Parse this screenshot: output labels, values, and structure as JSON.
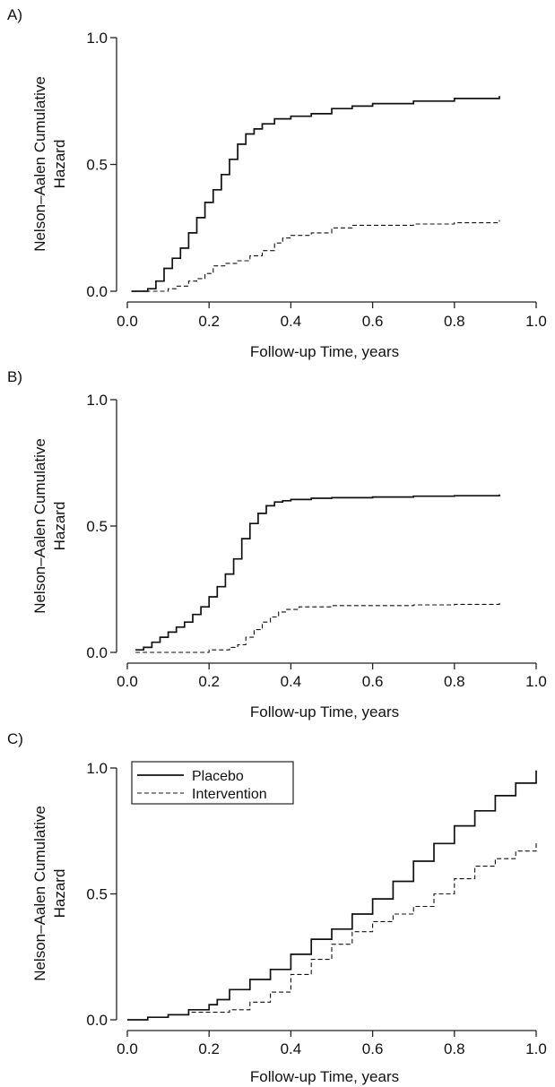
{
  "chart_data": [
    {
      "type": "line",
      "panel_label": "A)",
      "xlabel": "Follow-up Time, years",
      "ylabel": [
        "Nelson–Aalen Cumulative",
        "Hazard"
      ],
      "xlim": [
        0,
        1
      ],
      "ylim": [
        0,
        1
      ],
      "x_ticks": [
        "0.0",
        "0.2",
        "0.4",
        "0.6",
        "0.8",
        "1.0"
      ],
      "y_ticks": [
        "0.0",
        "0.5",
        "1.0"
      ],
      "grid": false,
      "series": [
        {
          "style": "solid",
          "x": [
            0.01,
            0.04,
            0.05,
            0.07,
            0.09,
            0.11,
            0.13,
            0.15,
            0.17,
            0.19,
            0.21,
            0.23,
            0.25,
            0.27,
            0.29,
            0.31,
            0.33,
            0.36,
            0.4,
            0.45,
            0.5,
            0.55,
            0.6,
            0.7,
            0.8,
            0.91
          ],
          "y": [
            0,
            0,
            0.01,
            0.04,
            0.09,
            0.13,
            0.17,
            0.23,
            0.29,
            0.35,
            0.4,
            0.46,
            0.52,
            0.58,
            0.62,
            0.64,
            0.66,
            0.68,
            0.69,
            0.7,
            0.72,
            0.73,
            0.74,
            0.75,
            0.76,
            0.77
          ]
        },
        {
          "style": "dashed",
          "x": [
            0.01,
            0.05,
            0.08,
            0.1,
            0.12,
            0.15,
            0.17,
            0.19,
            0.21,
            0.24,
            0.27,
            0.3,
            0.33,
            0.36,
            0.38,
            0.4,
            0.45,
            0.5,
            0.55,
            0.6,
            0.7,
            0.8,
            0.91
          ],
          "y": [
            0,
            0,
            0,
            0.01,
            0.02,
            0.04,
            0.05,
            0.07,
            0.1,
            0.11,
            0.12,
            0.14,
            0.16,
            0.19,
            0.21,
            0.22,
            0.23,
            0.25,
            0.26,
            0.26,
            0.265,
            0.27,
            0.28
          ]
        }
      ]
    },
    {
      "type": "line",
      "panel_label": "B)",
      "xlabel": "Follow-up Time, years",
      "ylabel": [
        "Nelson–Aalen Cumulative",
        "Hazard"
      ],
      "xlim": [
        0,
        1
      ],
      "ylim": [
        0,
        1
      ],
      "x_ticks": [
        "0.0",
        "0.2",
        "0.4",
        "0.6",
        "0.8",
        "1.0"
      ],
      "y_ticks": [
        "0.0",
        "0.5",
        "1.0"
      ],
      "grid": false,
      "series": [
        {
          "style": "solid",
          "x": [
            0.02,
            0.04,
            0.06,
            0.08,
            0.1,
            0.12,
            0.14,
            0.16,
            0.18,
            0.2,
            0.22,
            0.24,
            0.26,
            0.28,
            0.3,
            0.32,
            0.34,
            0.36,
            0.38,
            0.4,
            0.45,
            0.5,
            0.6,
            0.7,
            0.8,
            0.91
          ],
          "y": [
            0.01,
            0.02,
            0.04,
            0.06,
            0.08,
            0.1,
            0.12,
            0.15,
            0.18,
            0.22,
            0.26,
            0.31,
            0.37,
            0.45,
            0.51,
            0.55,
            0.58,
            0.595,
            0.6,
            0.605,
            0.61,
            0.612,
            0.615,
            0.618,
            0.62,
            0.625
          ]
        },
        {
          "style": "dashed",
          "x": [
            0.02,
            0.1,
            0.15,
            0.2,
            0.23,
            0.25,
            0.27,
            0.29,
            0.31,
            0.33,
            0.35,
            0.37,
            0.39,
            0.42,
            0.45,
            0.5,
            0.6,
            0.7,
            0.8,
            0.91
          ],
          "y": [
            0,
            0,
            0,
            0.01,
            0.01,
            0.02,
            0.03,
            0.06,
            0.09,
            0.12,
            0.14,
            0.16,
            0.17,
            0.18,
            0.18,
            0.185,
            0.185,
            0.188,
            0.19,
            0.195
          ]
        }
      ]
    },
    {
      "type": "line",
      "panel_label": "C)",
      "xlabel": "Follow-up Time, years",
      "ylabel": [
        "Nelson–Aalen Cumulative",
        "Hazard"
      ],
      "xlim": [
        0,
        1
      ],
      "ylim": [
        0,
        1
      ],
      "x_ticks": [
        "0.0",
        "0.2",
        "0.4",
        "0.6",
        "0.8",
        "1.0"
      ],
      "y_ticks": [
        "0.0",
        "0.5",
        "1.0"
      ],
      "grid": false,
      "legend_position": "top-left",
      "series": [
        {
          "name": "Placebo",
          "style": "solid",
          "x": [
            0.0,
            0.05,
            0.1,
            0.15,
            0.2,
            0.22,
            0.25,
            0.3,
            0.35,
            0.4,
            0.45,
            0.5,
            0.55,
            0.6,
            0.65,
            0.7,
            0.75,
            0.8,
            0.85,
            0.9,
            0.95,
            1.0
          ],
          "y": [
            0,
            0.01,
            0.02,
            0.04,
            0.06,
            0.08,
            0.12,
            0.16,
            0.2,
            0.26,
            0.32,
            0.36,
            0.42,
            0.48,
            0.55,
            0.63,
            0.7,
            0.77,
            0.83,
            0.89,
            0.94,
            0.99
          ]
        },
        {
          "name": "Intervention",
          "style": "dashed",
          "x": [
            0.0,
            0.05,
            0.1,
            0.15,
            0.2,
            0.25,
            0.3,
            0.35,
            0.4,
            0.45,
            0.5,
            0.55,
            0.6,
            0.65,
            0.7,
            0.75,
            0.8,
            0.85,
            0.9,
            0.95,
            1.0
          ],
          "y": [
            0,
            0.01,
            0.02,
            0.03,
            0.03,
            0.04,
            0.07,
            0.11,
            0.18,
            0.24,
            0.3,
            0.35,
            0.39,
            0.42,
            0.45,
            0.5,
            0.56,
            0.61,
            0.64,
            0.67,
            0.71
          ]
        }
      ]
    }
  ]
}
